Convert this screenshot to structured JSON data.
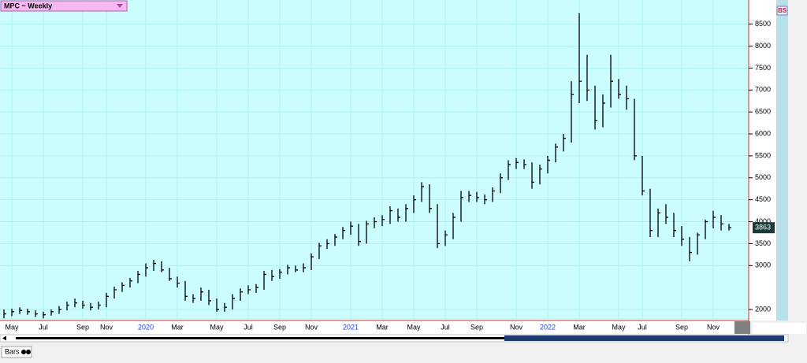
{
  "chart_data": {
    "type": "ohlc",
    "title": "MPC ~ Weekly",
    "categories": [
      null,
      "May",
      null,
      null,
      null,
      "Jul",
      null,
      null,
      null,
      null,
      "Sep",
      null,
      null,
      "Nov",
      null,
      null,
      null,
      null,
      "2020",
      null,
      null,
      null,
      "Mar",
      null,
      null,
      null,
      null,
      "May",
      null,
      null,
      null,
      "Jul",
      null,
      null,
      null,
      "Sep",
      null,
      null,
      null,
      "Nov",
      null,
      null,
      null,
      null,
      "2021",
      null,
      null,
      null,
      "Mar",
      null,
      null,
      null,
      "May",
      null,
      null,
      null,
      "Jul",
      null,
      null,
      null,
      "Sep",
      null,
      null,
      null,
      null,
      "Nov",
      null,
      null,
      null,
      "2022",
      null,
      null,
      null,
      "Mar",
      null,
      null,
      null,
      null,
      "May",
      null,
      null,
      "Jul",
      null,
      null,
      null,
      null,
      "Sep",
      null,
      null,
      null,
      "Nov",
      null,
      null
    ],
    "high": [
      2000,
      2020,
      2050,
      2020,
      1980,
      1950,
      2000,
      2080,
      2180,
      2250,
      2200,
      2150,
      2180,
      2380,
      2520,
      2620,
      2720,
      2880,
      3050,
      3130,
      3100,
      2950,
      2750,
      2650,
      2350,
      2500,
      2450,
      2250,
      2150,
      2350,
      2480,
      2550,
      2580,
      2880,
      2900,
      2920,
      3020,
      3000,
      3050,
      3280,
      3520,
      3600,
      3720,
      3880,
      4000,
      3950,
      4020,
      4100,
      4150,
      4350,
      4300,
      4400,
      4600,
      4900,
      4850,
      4400,
      3800,
      4200,
      4700,
      4700,
      4680,
      4620,
      4780,
      5100,
      5400,
      5450,
      5420,
      5350,
      5300,
      5500,
      5780,
      6000,
      7200,
      8750,
      7800,
      7100,
      6900,
      7800,
      7250,
      7100,
      6800,
      5500,
      4750,
      4300,
      4400,
      4200,
      3900,
      3650,
      3750,
      4050,
      4250,
      4150,
      3950
    ],
    "low": [
      1800,
      1850,
      1900,
      1880,
      1830,
      1800,
      1860,
      1900,
      1980,
      2050,
      2020,
      1980,
      2000,
      2050,
      2250,
      2400,
      2500,
      2600,
      2750,
      2880,
      2850,
      2650,
      2500,
      2200,
      2150,
      2200,
      2100,
      1950,
      1950,
      2000,
      2200,
      2350,
      2380,
      2450,
      2650,
      2700,
      2800,
      2850,
      2850,
      2900,
      3150,
      3380,
      3450,
      3600,
      3700,
      3450,
      3500,
      3850,
      3900,
      3950,
      4000,
      4000,
      4200,
      4450,
      4200,
      3400,
      3450,
      3600,
      4000,
      4450,
      4450,
      4400,
      4450,
      4650,
      4950,
      5200,
      5200,
      4750,
      4850,
      5100,
      5350,
      5600,
      5800,
      6700,
      6750,
      6100,
      6150,
      6600,
      6800,
      6550,
      5400,
      4600,
      3650,
      3650,
      3950,
      3650,
      3450,
      3100,
      3250,
      3600,
      3850,
      3800,
      3800
    ],
    "close": [
      1900,
      1950,
      1980,
      1950,
      1900,
      1880,
      1950,
      2000,
      2100,
      2150,
      2100,
      2050,
      2100,
      2300,
      2450,
      2550,
      2650,
      2800,
      2950,
      3050,
      2900,
      2700,
      2600,
      2300,
      2250,
      2400,
      2200,
      2000,
      2050,
      2250,
      2400,
      2450,
      2500,
      2800,
      2750,
      2850,
      2950,
      2900,
      2950,
      3200,
      3450,
      3500,
      3650,
      3800,
      3900,
      3550,
      3950,
      4000,
      4050,
      4250,
      4100,
      4300,
      4500,
      4800,
      4300,
      3500,
      3700,
      4100,
      4550,
      4600,
      4550,
      4500,
      4700,
      5000,
      5300,
      5350,
      5300,
      4900,
      5200,
      5400,
      5700,
      5900,
      6900,
      7200,
      7000,
      6300,
      6700,
      7200,
      6900,
      6800,
      5500,
      4700,
      3800,
      4200,
      4100,
      3800,
      3600,
      3300,
      3700,
      4000,
      4100,
      3950,
      3863
    ],
    "color": "#000000",
    "ylim": [
      1750,
      9050
    ],
    "yticks": [
      2000,
      3000,
      3500,
      4000,
      4500,
      5000,
      5500,
      6000,
      6500,
      7000,
      7500,
      8000,
      8500
    ],
    "grid": true
  },
  "badge": "BS",
  "toolbar": {
    "label": "Bars"
  }
}
